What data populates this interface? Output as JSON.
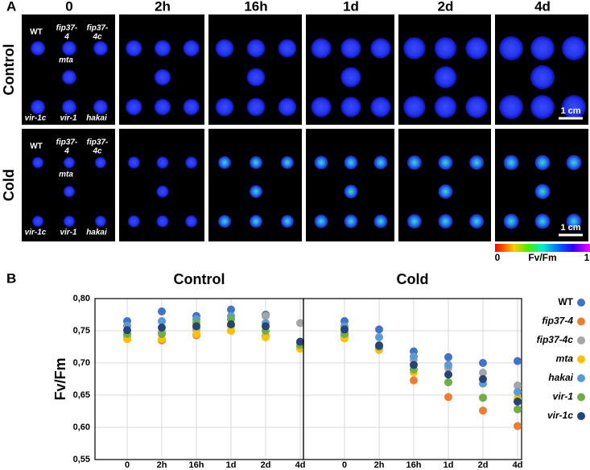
{
  "panel_a": {
    "label": "A",
    "time_points": [
      "0",
      "2h",
      "16h",
      "1d",
      "2d",
      "4d"
    ],
    "rows": [
      "Control",
      "Cold"
    ],
    "genotypes": [
      [
        "WT"
      ],
      [
        "fip37-",
        "4"
      ],
      [
        "fip37-",
        "4c"
      ],
      [
        "mta"
      ],
      [
        "vir-1c"
      ],
      [
        "vir-1"
      ],
      [
        "hakai"
      ]
    ],
    "scale_bar": "1 cm",
    "colorbar": {
      "min": 0,
      "label": "Fv/Fm",
      "max": 1
    }
  },
  "panel_b": {
    "label": "B"
  },
  "chart_data": [
    {
      "type": "scatter",
      "title": "Control",
      "ylabel": "Fv/Fm",
      "legend": "right",
      "grid": true,
      "categories": [
        "0",
        "2h",
        "16h",
        "1d",
        "2d",
        "4d"
      ],
      "ylim": [
        0.55,
        0.8
      ],
      "yticks": [
        {
          "value": 0.55,
          "label": "0,55"
        },
        {
          "value": 0.6,
          "label": "0,60"
        },
        {
          "value": 0.65,
          "label": "0,65"
        },
        {
          "value": 0.7,
          "label": "0,70"
        },
        {
          "value": 0.75,
          "label": "0,75"
        },
        {
          "value": 0.8,
          "label": "0,80"
        }
      ],
      "series": [
        {
          "name": "WT",
          "color": "#4472c4",
          "values": [
            0.765,
            0.78,
            0.773,
            0.783,
            0.775,
            0.733
          ]
        },
        {
          "name": "fip37-4",
          "color": "#ed7d31",
          "values": [
            0.74,
            0.735,
            0.743,
            0.75,
            0.742,
            0.725
          ]
        },
        {
          "name": "fip37-4c",
          "color": "#a5a5a5",
          "values": [
            0.745,
            0.748,
            0.752,
            0.758,
            0.773,
            0.762
          ]
        },
        {
          "name": "mta",
          "color": "#ffc000",
          "values": [
            0.737,
            0.737,
            0.745,
            0.75,
            0.74,
            0.722
          ]
        },
        {
          "name": "hakai",
          "color": "#5b9bd5",
          "values": [
            0.758,
            0.765,
            0.768,
            0.773,
            0.762,
            0.73
          ]
        },
        {
          "name": "vir-1",
          "color": "#70ad47",
          "values": [
            0.745,
            0.745,
            0.762,
            0.768,
            0.75,
            0.728
          ]
        },
        {
          "name": "vir-1c",
          "color": "#264478",
          "values": [
            0.751,
            0.755,
            0.757,
            0.76,
            0.757,
            0.733
          ]
        }
      ]
    },
    {
      "type": "scatter",
      "title": "Cold",
      "grid": true,
      "categories": [
        "0",
        "2h",
        "16h",
        "1d",
        "2d",
        "4d"
      ],
      "ylim": [
        0.55,
        0.8
      ],
      "yticks": [
        0.55,
        0.6,
        0.65,
        0.7,
        0.75,
        0.8
      ],
      "series": [
        {
          "name": "WT",
          "color": "#4472c4",
          "values": [
            0.765,
            0.752,
            0.718,
            0.709,
            0.7,
            0.703
          ]
        },
        {
          "name": "fip37-4",
          "color": "#ed7d31",
          "values": [
            0.742,
            0.722,
            0.673,
            0.647,
            0.626,
            0.602
          ]
        },
        {
          "name": "fip37-4c",
          "color": "#a5a5a5",
          "values": [
            0.747,
            0.728,
            0.705,
            0.692,
            0.685,
            0.665
          ]
        },
        {
          "name": "mta",
          "color": "#ffc000",
          "values": [
            0.738,
            0.72,
            0.685,
            0.67,
            0.646,
            0.645
          ]
        },
        {
          "name": "hakai",
          "color": "#5b9bd5",
          "values": [
            0.757,
            0.74,
            0.71,
            0.697,
            0.668,
            0.655
          ]
        },
        {
          "name": "vir-1",
          "color": "#70ad47",
          "values": [
            0.745,
            0.725,
            0.69,
            0.67,
            0.646,
            0.628
          ]
        },
        {
          "name": "vir-1c",
          "color": "#264478",
          "values": [
            0.752,
            0.727,
            0.697,
            0.682,
            0.675,
            0.64
          ]
        }
      ]
    }
  ]
}
